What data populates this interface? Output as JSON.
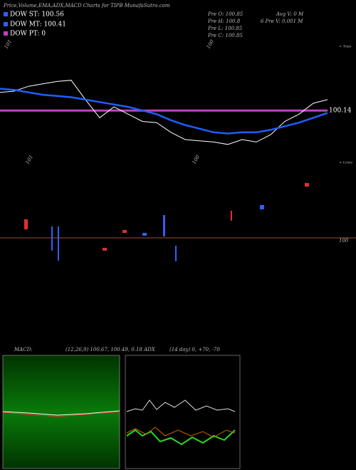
{
  "header": {
    "title": "Price,Volume,EMA,ADX,MACD Charts for TIPB MunafaSutra.com",
    "legend": [
      "DOW ST: 100.56",
      "DOW MT: 100.41",
      "DOW PT: 0"
    ],
    "stats": [
      "Pre   O: 100.85",
      "Pre   H: 100.8",
      "Pre   L: 100.85",
      "Pre   C: 100.85"
    ],
    "avg": [
      "Avg V: 0  M",
      "6   Pre   V: 0.001 M"
    ]
  },
  "labels": {
    "top_left": "101",
    "top_mid": "100",
    "low_left": "101",
    "low_mid": "100",
    "tops": "< Tops",
    "lows": "< Lows",
    "right": "100"
  },
  "indicators": {
    "macd": "MACD:",
    "macd_values": "(12,26,9) 100.67,  100.49,  0.18 ADX",
    "adx_values": "(14  day) 0,  +70,  -70"
  },
  "chart_data": {
    "type": "line",
    "categories": [
      null,
      null,
      null,
      null,
      null,
      null,
      null,
      null,
      null,
      null,
      null,
      null,
      null,
      null,
      null,
      null,
      null,
      null,
      null,
      null,
      null,
      null,
      null,
      null
    ],
    "series": [
      {
        "name": null,
        "color": "#ffffff",
        "values": [
          100.29,
          100.3,
          100.34,
          100.36,
          100.38,
          100.39,
          100.23,
          100.08,
          100.17,
          100.11,
          100.05,
          100.04,
          99.96,
          99.9,
          99.89,
          99.88,
          99.86,
          99.9,
          99.88,
          99.94,
          100.05,
          100.11,
          100.2,
          100.23
        ]
      },
      {
        "name": null,
        "color": "#1f5fff",
        "values": [
          100.32,
          100.31,
          100.29,
          100.27,
          100.26,
          100.25,
          100.23,
          100.21,
          100.19,
          100.17,
          100.14,
          100.11,
          100.06,
          100.02,
          99.99,
          99.96,
          99.95,
          99.96,
          99.96,
          99.98,
          100.01,
          100.04,
          100.08,
          100.12
        ]
      }
    ],
    "level": 100.14,
    "level_color": "#c040c0",
    "ylim": [
      99.7,
      100.7
    ]
  }
}
